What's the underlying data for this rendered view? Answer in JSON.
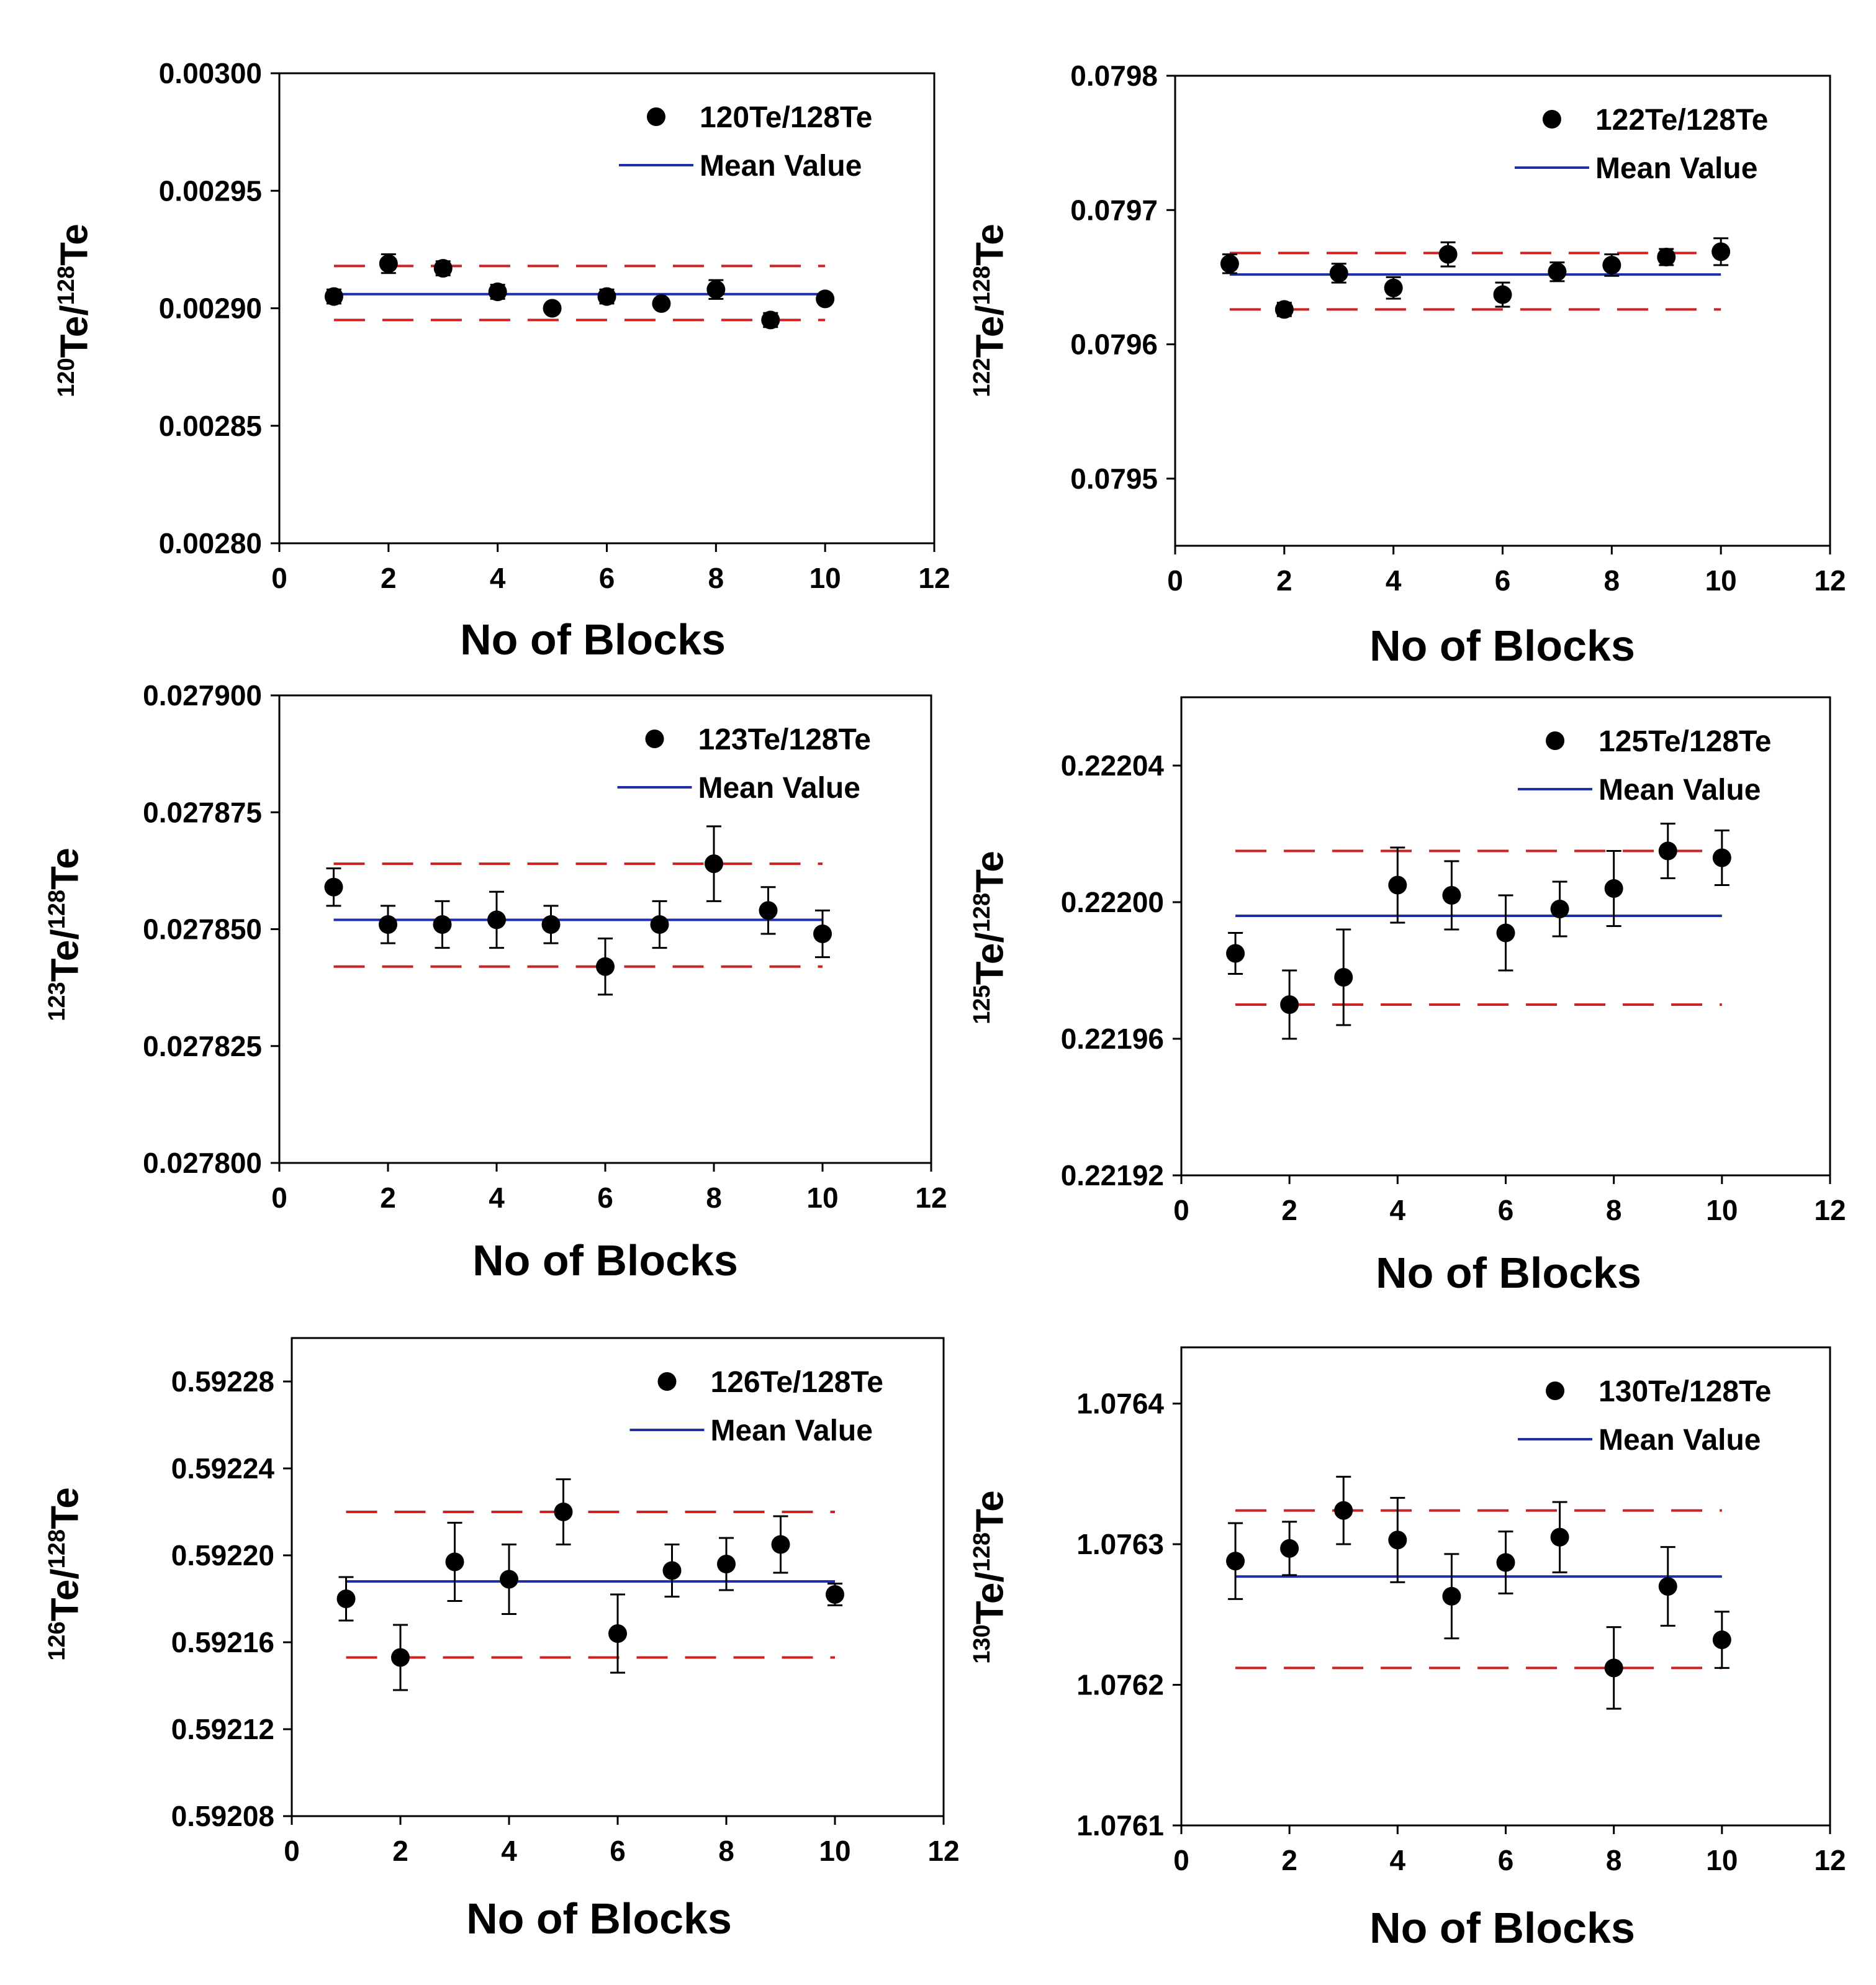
{
  "figure": {
    "colors": {
      "mean_line": "#1f2fa8",
      "bounds_line": "#cc2222",
      "points": "#000000",
      "axis": "#000000"
    }
  },
  "chart_data": [
    {
      "type": "scatter",
      "ylabel": {
        "num": "120",
        "num_label": "Te/",
        "den": "128",
        "den_label": "Te"
      },
      "xlabel": "No of Blocks",
      "xlim": [
        0,
        12
      ],
      "xticks": [
        "0",
        "2",
        "4",
        "6",
        "8",
        "10",
        "12"
      ],
      "ylim": [
        0.0028,
        0.003
      ],
      "yticks": [
        "0.00280",
        "0.00285",
        "0.00290",
        "0.00295",
        "0.00300"
      ],
      "legend": {
        "series_label": "120Te/128Te",
        "mean_label": "Mean Value",
        "placement": "top-right"
      },
      "x": [
        1,
        2,
        3,
        4,
        5,
        6,
        7,
        8,
        9,
        10
      ],
      "y": [
        0.002905,
        0.002919,
        0.002917,
        0.002907,
        0.0029,
        0.002905,
        0.002902,
        0.002908,
        0.002895,
        0.002904
      ],
      "err": [
        3e-06,
        4e-06,
        3e-06,
        3e-06,
        2e-06,
        3e-06,
        2e-06,
        4e-06,
        3e-06,
        2e-06
      ],
      "mean": 0.002906,
      "upper": 0.002918,
      "lower": 0.002895,
      "line_x": [
        1,
        10
      ]
    },
    {
      "type": "scatter",
      "ylabel": {
        "num": "122",
        "num_label": "Te/",
        "den": "128",
        "den_label": "Te"
      },
      "xlabel": "No of Blocks",
      "xlim": [
        0,
        12
      ],
      "xticks": [
        "0",
        "2",
        "4",
        "6",
        "8",
        "10",
        "12"
      ],
      "ylim": [
        0.07945,
        0.0798
      ],
      "yticks": [
        "0.0795",
        "0.0796",
        "0.0797",
        "0.0798"
      ],
      "legend": {
        "series_label": "122Te/128Te",
        "mean_label": "Mean Value",
        "placement": "top-right"
      },
      "x": [
        1,
        2,
        3,
        4,
        5,
        6,
        7,
        8,
        9,
        10
      ],
      "y": [
        0.07966,
        0.079626,
        0.079653,
        0.079642,
        0.079667,
        0.079637,
        0.079654,
        0.079659,
        0.079665,
        0.079669
      ],
      "err": [
        7e-06,
        5e-06,
        7e-06,
        8e-06,
        9e-06,
        9e-06,
        7e-06,
        8e-06,
        6e-06,
        1e-05
      ],
      "mean": 0.079652,
      "upper": 0.079668,
      "lower": 0.079626,
      "line_x": [
        1,
        10
      ]
    },
    {
      "type": "scatter",
      "ylabel": {
        "num": "123",
        "num_label": "Te/",
        "den": "128",
        "den_label": "Te"
      },
      "xlabel": "No of Blocks",
      "xlim": [
        0,
        12
      ],
      "xticks": [
        "0",
        "2",
        "4",
        "6",
        "8",
        "10",
        "12"
      ],
      "ylim": [
        0.0278,
        0.0279
      ],
      "yticks": [
        "0.027800",
        "0.027825",
        "0.027850",
        "0.027875",
        "0.027900"
      ],
      "legend": {
        "series_label": "123Te/128Te",
        "mean_label": "Mean Value",
        "placement": "top-right"
      },
      "x": [
        1,
        2,
        3,
        4,
        5,
        6,
        7,
        8,
        9,
        10
      ],
      "y": [
        0.027859,
        0.027851,
        0.027851,
        0.027852,
        0.027851,
        0.027842,
        0.027851,
        0.027864,
        0.027854,
        0.027849
      ],
      "err": [
        4e-06,
        4e-06,
        5e-06,
        6e-06,
        4e-06,
        6e-06,
        5e-06,
        8e-06,
        5e-06,
        5e-06
      ],
      "mean": 0.027852,
      "upper": 0.027864,
      "lower": 0.027842,
      "line_x": [
        1,
        10
      ]
    },
    {
      "type": "scatter",
      "ylabel": {
        "num": "125",
        "num_label": "Te/",
        "den": "128",
        "den_label": "Te"
      },
      "xlabel": "No of Blocks",
      "xlim": [
        0,
        12
      ],
      "xticks": [
        "0",
        "2",
        "4",
        "6",
        "8",
        "10",
        "12"
      ],
      "ylim": [
        0.22192,
        0.22206
      ],
      "yticks": [
        "0.22192",
        "0.22196",
        "0.22200",
        "0.22204"
      ],
      "legend": {
        "series_label": "125Te/128Te",
        "mean_label": "Mean Value",
        "placement": "top-right"
      },
      "x": [
        1,
        2,
        3,
        4,
        5,
        6,
        7,
        8,
        9,
        10
      ],
      "y": [
        0.221985,
        0.22197,
        0.221978,
        0.222005,
        0.222002,
        0.221991,
        0.221998,
        0.222004,
        0.222015,
        0.222013
      ],
      "err": [
        6e-06,
        1e-05,
        1.4e-05,
        1.1e-05,
        1e-05,
        1.1e-05,
        8e-06,
        1.1e-05,
        8e-06,
        8e-06
      ],
      "mean": 0.221996,
      "upper": 0.222015,
      "lower": 0.22197,
      "line_x": [
        1,
        10
      ]
    },
    {
      "type": "scatter",
      "ylabel": {
        "num": "126",
        "num_label": "Te/",
        "den": "128",
        "den_label": "Te"
      },
      "xlabel": "No of Blocks",
      "xlim": [
        0,
        12
      ],
      "xticks": [
        "0",
        "2",
        "4",
        "6",
        "8",
        "10",
        "12"
      ],
      "ylim": [
        0.59208,
        0.5923
      ],
      "yticks": [
        "0.59208",
        "0.59212",
        "0.59216",
        "0.59220",
        "0.59224",
        "0.59228"
      ],
      "legend": {
        "series_label": "126Te/128Te",
        "mean_label": "Mean Value",
        "placement": "top-right"
      },
      "x": [
        1,
        2,
        3,
        4,
        5,
        6,
        7,
        8,
        9,
        10
      ],
      "y": [
        0.59218,
        0.592153,
        0.592197,
        0.592189,
        0.59222,
        0.592164,
        0.592193,
        0.592196,
        0.592205,
        0.592182
      ],
      "err": [
        1e-05,
        1.5e-05,
        1.8e-05,
        1.6e-05,
        1.5e-05,
        1.8e-05,
        1.2e-05,
        1.2e-05,
        1.3e-05,
        5e-06
      ],
      "mean": 0.592188,
      "upper": 0.59222,
      "lower": 0.592153,
      "line_x": [
        1,
        10
      ]
    },
    {
      "type": "scatter",
      "ylabel": {
        "num": "130",
        "num_label": "Te/",
        "den": "128",
        "den_label": "Te"
      },
      "xlabel": "No of Blocks",
      "xlim": [
        0,
        12
      ],
      "xticks": [
        "0",
        "2",
        "4",
        "6",
        "8",
        "10",
        "12"
      ],
      "ylim": [
        1.0761,
        1.07644
      ],
      "yticks": [
        "1.0761",
        "1.0762",
        "1.0763",
        "1.0764"
      ],
      "legend": {
        "series_label": "130Te/128Te",
        "mean_label": "Mean Value",
        "placement": "top-right"
      },
      "x": [
        1,
        2,
        3,
        4,
        5,
        6,
        7,
        8,
        9,
        10
      ],
      "y": [
        1.076288,
        1.076297,
        1.076324,
        1.076303,
        1.076263,
        1.076287,
        1.076305,
        1.076212,
        1.07627,
        1.076232
      ],
      "err": [
        2.7e-05,
        1.9e-05,
        2.4e-05,
        3e-05,
        3e-05,
        2.2e-05,
        2.5e-05,
        2.9e-05,
        2.8e-05,
        2e-05
      ],
      "mean": 1.076277,
      "upper": 1.076324,
      "lower": 1.076212,
      "line_x": [
        1,
        10
      ]
    }
  ]
}
